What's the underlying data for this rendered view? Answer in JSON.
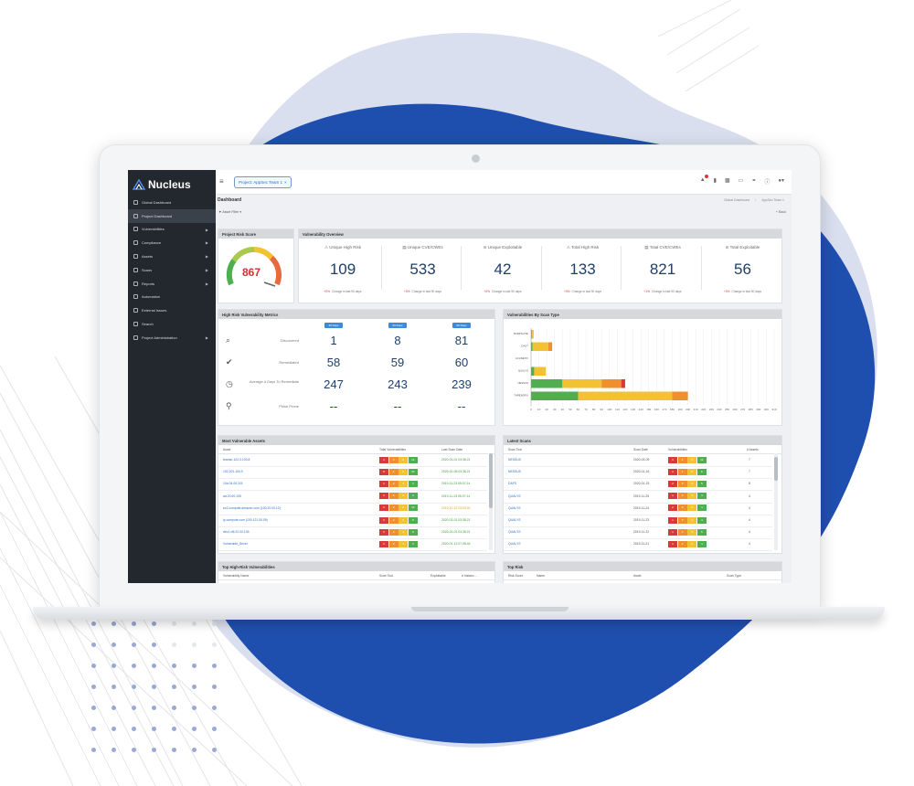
{
  "brand": {
    "name": "Nucleus"
  },
  "sidebar": {
    "items": [
      {
        "label": "Global Dashboard",
        "icon": "globe-icon",
        "arrow": false,
        "active": false
      },
      {
        "label": "Project Dashboard",
        "icon": "dashboard-icon",
        "arrow": false,
        "active": true
      },
      {
        "label": "Vulnerabilities",
        "icon": "bug-icon",
        "arrow": true,
        "active": false
      },
      {
        "label": "Compliance",
        "icon": "check-icon",
        "arrow": true,
        "active": false
      },
      {
        "label": "Assets",
        "icon": "server-icon",
        "arrow": true,
        "active": false
      },
      {
        "label": "Scans",
        "icon": "scan-icon",
        "arrow": true,
        "active": false
      },
      {
        "label": "Reports",
        "icon": "report-icon",
        "arrow": true,
        "active": false
      },
      {
        "label": "Automation",
        "icon": "wand-icon",
        "arrow": false,
        "active": false
      },
      {
        "label": "External Issues",
        "icon": "link-icon",
        "arrow": false,
        "active": false
      },
      {
        "label": "Search",
        "icon": "search-icon",
        "arrow": false,
        "active": false
      },
      {
        "label": "Project Administration",
        "icon": "gear-icon",
        "arrow": true,
        "active": false
      }
    ]
  },
  "topbar": {
    "project_label": "Project: AppSec Team 1",
    "close_glyph": "×",
    "menu_glyph": "≡",
    "icons": [
      "bell-icon",
      "thermometer-icon",
      "chat-icon",
      "document-icon",
      "share-icon",
      "help-icon",
      "user-icon"
    ]
  },
  "page": {
    "title": "Dashboard",
    "crumbs": [
      "Global Dashboard",
      "AppSec Team 1"
    ],
    "filter_label": "Asset Filter",
    "back_label": "Back"
  },
  "risk": {
    "title": "Project Risk Score",
    "score": "867",
    "score_fraction": 0.87
  },
  "overview": {
    "title": "Vulnerability Overview",
    "change_text": "Change in last 90 days",
    "cells": [
      {
        "label": "Unique High Risk",
        "value": "109",
        "change": "+0%",
        "icon": "warning-icon"
      },
      {
        "label": "Unique CVE/CWEs",
        "value": "533",
        "change": "+0%",
        "icon": "database-icon"
      },
      {
        "label": "Unique Exploitable",
        "value": "42",
        "change": "+0%",
        "icon": "exploit-icon"
      },
      {
        "label": "Total High Risk",
        "value": "133",
        "change": "+0%",
        "icon": "warning-icon"
      },
      {
        "label": "Total CVE/CWEs",
        "value": "821",
        "change": "+1%",
        "icon": "database-icon"
      },
      {
        "label": "Total Exploitable",
        "value": "56",
        "change": "+0%",
        "icon": "exploit-icon"
      }
    ]
  },
  "metrics": {
    "title": "High Risk Vulnerability Metrics",
    "days": [
      "30 Days",
      "60 Days",
      "90 Days"
    ],
    "rows": [
      {
        "label": "Discovered",
        "icon": "search-icon",
        "values": [
          "1",
          "8",
          "81"
        ]
      },
      {
        "label": "Remediated",
        "icon": "checkmark-icon",
        "values": [
          "58",
          "59",
          "60"
        ]
      },
      {
        "label": "Average # Days To Remediate",
        "icon": "clock-icon",
        "values": [
          "247",
          "243",
          "239"
        ]
      },
      {
        "label": "Phish Prone",
        "icon": "hook-icon",
        "values": [
          "--",
          "--",
          "--"
        ]
      }
    ]
  },
  "scan_type": {
    "title": "Vulnerabilities By Scan Type"
  },
  "chart_data": {
    "type": "bar",
    "orientation": "horizontal",
    "stacked": true,
    "title": "Vulnerabilities By Scan Type",
    "categories": [
      "BURPSUITE",
      "DAST",
      "ACUNETIX",
      "QUALYS",
      "NESSUS",
      "THREADFIX"
    ],
    "series": [
      {
        "color": "#4fae4f",
        "values": [
          1,
          2,
          0,
          4,
          40,
          60
        ]
      },
      {
        "color": "#f2c233",
        "values": [
          1,
          20,
          0,
          15,
          50,
          120
        ]
      },
      {
        "color": "#f08f2e",
        "values": [
          1,
          5,
          0,
          0,
          25,
          20
        ]
      },
      {
        "color": "#d83a3a",
        "values": [
          0,
          0,
          0,
          0,
          5,
          0
        ]
      }
    ],
    "xticks": [
      "0",
      "10",
      "20",
      "30",
      "40",
      "50",
      "60",
      "70",
      "80",
      "90",
      "100",
      "110",
      "120",
      "130",
      "140",
      "150",
      "160",
      "170",
      "180",
      "190",
      "200",
      "210",
      "220",
      "230",
      "240",
      "250",
      "260",
      "270",
      "280",
      "290",
      "300",
      "310"
    ],
    "xlim": [
      0,
      310
    ],
    "grid": true
  },
  "assets": {
    "title": "Most Vulnerable Assets",
    "columns": [
      "Asset",
      "Total Vulnerabilities",
      "Last Scan Date"
    ],
    "rows": [
      {
        "asset": "teamsr-102.0.100.8",
        "sev": [
          "4",
          "3",
          "8",
          "12"
        ],
        "date": "2020-03-01 03:38:21",
        "date_color": "#3a9d3a"
      },
      {
        "asset": "192.201.100.9",
        "sev": [
          "8",
          "4",
          "5",
          "20"
        ],
        "date": "2020-02-05 03:38:21",
        "date_color": "#3a9d3a"
      },
      {
        "asset": "10a.04.00.115",
        "sev": [
          "2",
          "3",
          "3",
          "4"
        ],
        "date": "2019-11-23 05:07:14",
        "date_color": "#3a9d3a"
      },
      {
        "asset": "ad.20.00.105",
        "sev": [
          "3",
          "5",
          "2",
          "3"
        ],
        "date": "2019-11-23 05:07:14",
        "date_color": "#3a9d3a"
      },
      {
        "asset": "ec2.compute.amazon.com (100.20.00.12)",
        "sev": [
          "3",
          "3",
          "6",
          "13"
        ],
        "date": "2019-10-22 03:03:00",
        "date_color": "#d8a024"
      },
      {
        "asset": "ip.compute.com (100.121.00.09)",
        "sev": [
          "3",
          "3",
          "5",
          "8"
        ],
        "date": "2020-03-01 03:38:21",
        "date_color": "#3a9d3a"
      },
      {
        "asset": "dev1.vfil.22.00.105",
        "sev": [
          "3",
          "3",
          "3",
          "8"
        ],
        "date": "2020-03-01 03:38:21",
        "date_color": "#3a9d3a"
      },
      {
        "asset": "Vulnerable_Sever",
        "sev": [
          "3",
          "3",
          "3",
          "3"
        ],
        "date": "2020-01-13 07:08:44",
        "date_color": "#3a9d3a"
      }
    ]
  },
  "scans": {
    "title": "Latest Scans",
    "columns": [
      "Scan Tool",
      "Scan Date",
      "Vulnerabilities",
      "# Assets"
    ],
    "rows": [
      {
        "tool": "NESSUS",
        "date": "2020-03-09",
        "sev": [
          "3",
          "4",
          "5",
          "12"
        ],
        "assets": "7"
      },
      {
        "tool": "NESSUS",
        "date": "2020-01-16",
        "sev": [
          "3",
          "4",
          "5",
          "9"
        ],
        "assets": "7"
      },
      {
        "tool": "DAFS",
        "date": "2020-01-15",
        "sev": [
          "2",
          "3",
          "4",
          "6"
        ],
        "assets": "5"
      },
      {
        "tool": "QUALYS",
        "date": "2019-11-25",
        "sev": [
          "1",
          "2",
          "3",
          "4"
        ],
        "assets": "4"
      },
      {
        "tool": "QUALYS",
        "date": "2019-11-24",
        "sev": [
          "2",
          "3",
          "3",
          "4"
        ],
        "assets": "4"
      },
      {
        "tool": "QUALYS",
        "date": "2019-11-23",
        "sev": [
          "1",
          "3",
          "3",
          "4"
        ],
        "assets": "4"
      },
      {
        "tool": "QUALYS",
        "date": "2019-11-22",
        "sev": [
          "1",
          "2",
          "3",
          "5"
        ],
        "assets": "4"
      },
      {
        "tool": "QUALYS",
        "date": "2019-11-21",
        "sev": [
          "1",
          "2",
          "2",
          "4"
        ],
        "assets": "4"
      }
    ]
  },
  "top_vulns": {
    "title": "Top High-Risk Vulnerabilities",
    "columns": [
      "Vulnerability Name",
      "Scan Tool",
      "Exploitable",
      "# Instanc..."
    ]
  },
  "top_risk": {
    "title": "Top Risk",
    "columns": [
      "Risk Score",
      "Name",
      "Asset",
      "Scan Type"
    ]
  },
  "colors": {
    "critical": "#d83a3a",
    "high": "#f08f2e",
    "medium": "#f2c233",
    "low": "#4fae4f",
    "brand_blue": "#1f4fae"
  }
}
